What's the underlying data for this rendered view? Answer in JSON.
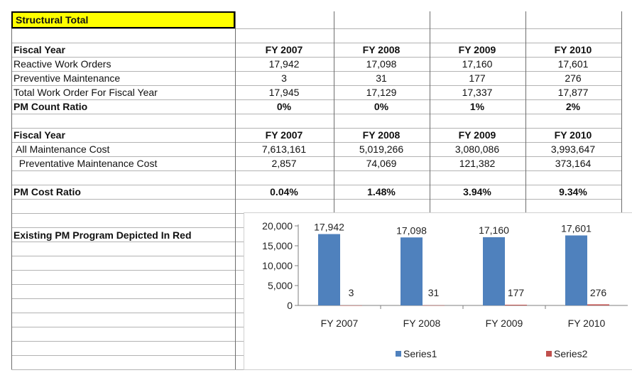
{
  "header": {
    "title": "Structural Total"
  },
  "count_table": {
    "header_label": "Fiscal Year",
    "years": [
      "FY 2007",
      "FY 2008",
      "FY 2009",
      "FY 2010"
    ],
    "rows": [
      {
        "label": "Reactive Work Orders",
        "values": [
          "17,942",
          "17,098",
          "17,160",
          "17,601"
        ],
        "bold": false
      },
      {
        "label": "Preventive Maintenance",
        "values": [
          "3",
          "31",
          "177",
          "276"
        ],
        "bold": false
      },
      {
        "label": "Total Work Order For Fiscal Year",
        "values": [
          "17,945",
          "17,129",
          "17,337",
          "17,877"
        ],
        "bold": false
      },
      {
        "label": "PM Count Ratio",
        "values": [
          "0%",
          "0%",
          "1%",
          "2%"
        ],
        "bold": true
      }
    ]
  },
  "cost_table": {
    "header_label": "Fiscal Year",
    "years": [
      "FY 2007",
      "FY 2008",
      "FY 2009",
      "FY 2010"
    ],
    "rows": [
      {
        "label": " All Maintenance Cost",
        "values": [
          "7,613,161",
          "5,019,266",
          "3,080,086",
          "3,993,647"
        ]
      },
      {
        "label": "  Preventative Maintenance Cost",
        "values": [
          "2,857",
          "74,069",
          "121,382",
          "373,164"
        ]
      }
    ]
  },
  "ratio_row": {
    "label": "PM Cost Ratio",
    "values": [
      "0.04%",
      "1.48%",
      "3.94%",
      "9.34%"
    ]
  },
  "chart_caption": "Existing PM Program Depicted In Red",
  "colors": {
    "series1": "#4f81bd",
    "series2": "#c0504d",
    "header_fill": "#ffff00"
  },
  "chart_data": {
    "type": "bar",
    "categories": [
      "FY 2007",
      "FY 2008",
      "FY 2009",
      "FY 2010"
    ],
    "series": [
      {
        "name": "Series1",
        "values": [
          17942,
          17098,
          17160,
          17601
        ],
        "labels": [
          "17,942",
          "17,098",
          "17,160",
          "17,601"
        ]
      },
      {
        "name": "Series2",
        "values": [
          3,
          31,
          177,
          276
        ],
        "labels": [
          "3",
          "31",
          "177",
          "276"
        ]
      }
    ],
    "ylim": [
      0,
      20000
    ],
    "yticks": [
      "0",
      "5,000",
      "10,000",
      "15,000",
      "20,000"
    ],
    "title": "",
    "xlabel": "",
    "ylabel": "",
    "grid": false,
    "legend": "bottom"
  }
}
